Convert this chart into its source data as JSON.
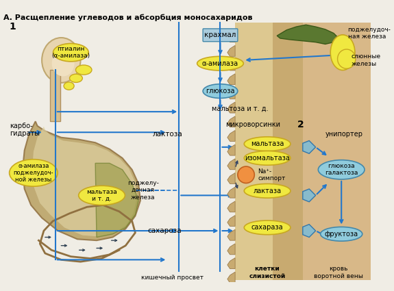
{
  "title": "А. Расщепление углеводов и абсорбция моносахаридов",
  "bg_color": "#f0ede5",
  "arrow_color": "#2277cc",
  "labels": {
    "title": "А. Расщепление углеводов и абсорбция моносахаридов",
    "num1": "1",
    "num2": "2",
    "ptialin": "птиалин\n(α-амилаза)",
    "karbogidrat": "карбо-\nгидраты",
    "alpha_amylase_pancreas": "α-амилаза\nподжелудоч-\nной железы",
    "maltaza_td_left": "мальтаза\nи т. д.",
    "podzhel_iron": "поджелу-\nдочная\nжелеза",
    "krakhmal": "крахмал",
    "alpha_amylase": "α-амилаза",
    "glyukoza_label": "глюкоза",
    "maltoza_td": "мальтоза и т. д.",
    "laktoza": "лактоза",
    "mikrovorsinki": "микроворсинки",
    "maltaza": "мальтаза",
    "izomaltaza": "изомальтаза",
    "na_simport": "Na⁺-\nсимпорт",
    "laktaza": "лактаза",
    "sakharaza": "сахараза",
    "saharoza": "сахароза",
    "uniporter": "унипортер",
    "glyukoza_gal": "глюкоза\nгалактоза",
    "fruktoza": "фруктоза",
    "kishechny_prosvet": "кишечный просвет",
    "kletki_slizistoy": "клетки\nслизистой",
    "krov_vorotnoy": "кровь\nворотной вены",
    "podzhel_zheleza2": "поджелудоч-\nная железа",
    "slyunnye_zhelezy": "слюнные\nжелезы"
  },
  "colors": {
    "yellow_enzyme": "#f0e840",
    "yellow_enzyme_edge": "#c8a820",
    "blue_sugar": "#90ccdd",
    "blue_sugar_edge": "#4488aa",
    "blue_box": "#aaccdd",
    "blue_box_edge": "#4488aa",
    "orange_circle": "#f09040",
    "orange_edge": "#c06020",
    "intestine_wall": "#c8aa70",
    "intestine_inner": "#ddc890",
    "intestine_outer": "#c09060",
    "blood_bg": "#d8b888",
    "stomach_outer": "#b8a060",
    "stomach_inner": "#ddd0a0",
    "stomach_green": "#a0a050",
    "pancreas_green": "#708040",
    "arrow_blue": "#2277cc",
    "arrow_dark": "#224488",
    "text_dark": "#111111",
    "transporter_fill": "#88bbcc",
    "transporter_edge": "#3377aa"
  }
}
